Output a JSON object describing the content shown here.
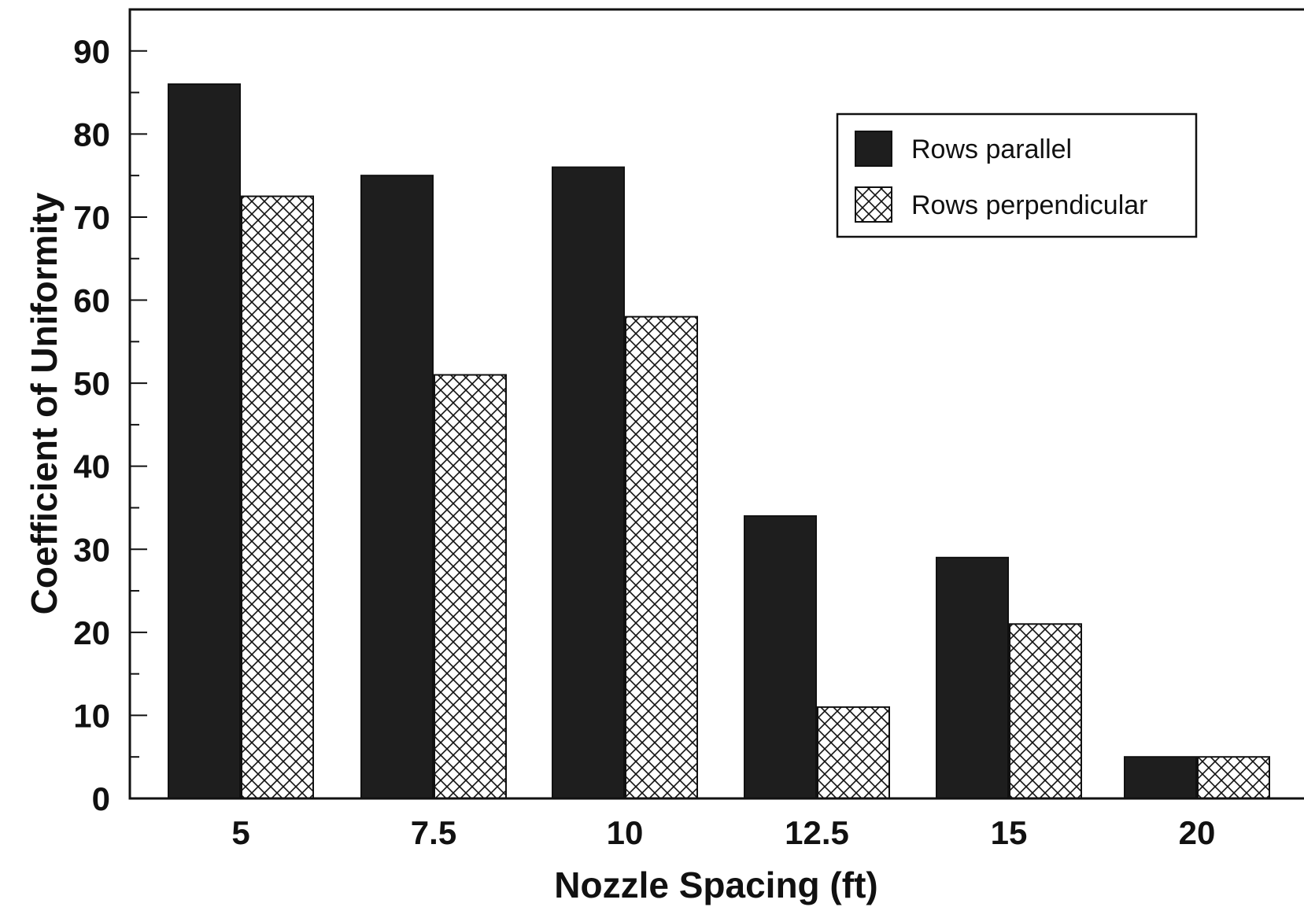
{
  "chart_data": {
    "type": "bar",
    "title": "",
    "xlabel": "Nozzle Spacing (ft)",
    "ylabel": "Coefficient of Uniformity",
    "categories": [
      "5",
      "7.5",
      "10",
      "12.5",
      "15",
      "20"
    ],
    "series": [
      {
        "name": "Rows parallel",
        "values": [
          86,
          75,
          76,
          34,
          29,
          5
        ],
        "fill": "#1e1e1e",
        "pattern": "solid"
      },
      {
        "name": "Rows perpendicular",
        "values": [
          72.5,
          51,
          58,
          11,
          21,
          5
        ],
        "fill": "#ffffff",
        "pattern": "crosshatch"
      }
    ],
    "ylim": [
      0,
      95
    ],
    "yticks": [
      0,
      10,
      20,
      30,
      40,
      50,
      60,
      70,
      80,
      90
    ],
    "ytick_labels": [
      "0",
      "10",
      "20",
      "30",
      "40",
      "50",
      "60",
      "70",
      "80",
      "90"
    ],
    "minor_tick_step": 5,
    "grid": false,
    "legend_position": "top-right",
    "colors": {
      "ink": "#111111",
      "bar_dark": "#1e1e1e",
      "background": "#ffffff"
    }
  }
}
